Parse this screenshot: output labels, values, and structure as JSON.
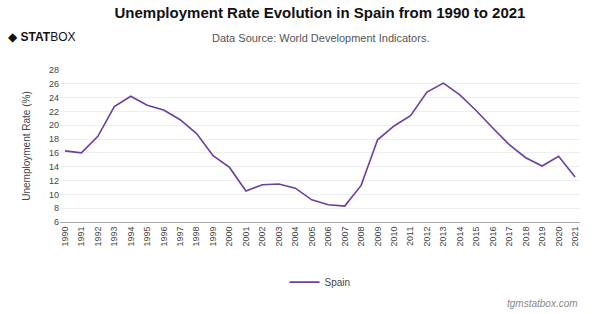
{
  "chart_data": {
    "type": "line",
    "title": "Unemployment Rate Evolution in Spain from 1990 to 2021",
    "subtitle": "Data Source: World Development Indicators.",
    "ylabel": "Unemployment Rate (%)",
    "x": [
      1990,
      1991,
      1992,
      1993,
      1994,
      1995,
      1996,
      1997,
      1998,
      1999,
      2000,
      2001,
      2002,
      2003,
      2004,
      2005,
      2006,
      2007,
      2008,
      2009,
      2010,
      2011,
      2012,
      2013,
      2014,
      2015,
      2016,
      2017,
      2018,
      2019,
      2020,
      2021
    ],
    "series": [
      {
        "name": "Spain",
        "color": "#6B3FA0",
        "values": [
          16.3,
          16.0,
          18.4,
          22.7,
          24.2,
          22.9,
          22.2,
          20.8,
          18.8,
          15.6,
          13.9,
          10.5,
          11.4,
          11.5,
          10.9,
          9.2,
          8.5,
          8.3,
          11.3,
          17.9,
          19.9,
          21.4,
          24.8,
          26.1,
          24.4,
          22.1,
          19.6,
          17.2,
          15.3,
          14.1,
          15.5,
          12.5
        ]
      }
    ],
    "xlim": [
      1989.7,
      2021.3
    ],
    "xticks": [
      1990,
      1991,
      1992,
      1993,
      1994,
      1995,
      1996,
      1997,
      1998,
      1999,
      2000,
      2001,
      2002,
      2003,
      2004,
      2005,
      2006,
      2007,
      2008,
      2009,
      2010,
      2011,
      2012,
      2013,
      2014,
      2015,
      2016,
      2017,
      2018,
      2019,
      2020,
      2021
    ],
    "ylim": [
      6,
      28
    ],
    "yticks": [
      6,
      8,
      10,
      12,
      14,
      16,
      18,
      20,
      22,
      24,
      26,
      28
    ],
    "grid": true,
    "legend": "bottom",
    "annotations": [
      "◆",
      "STAT",
      "BOX",
      "tgmstatbox.com"
    ]
  }
}
